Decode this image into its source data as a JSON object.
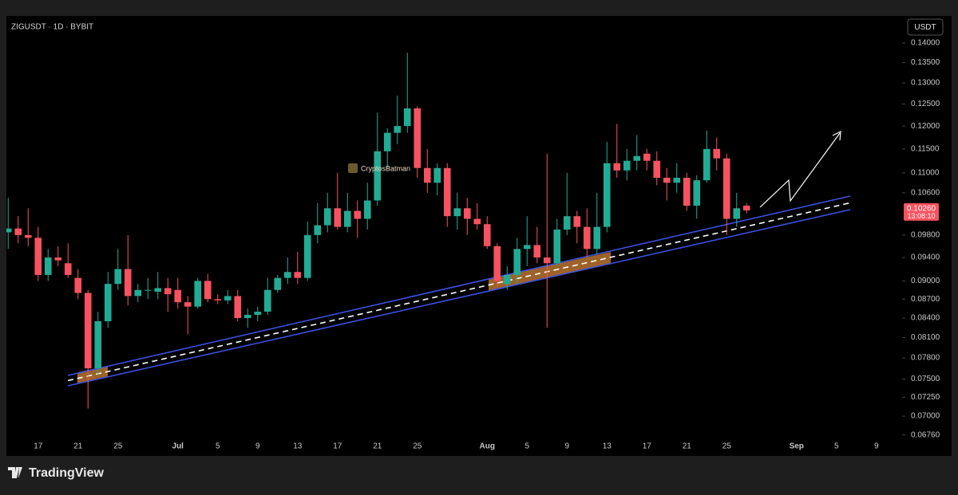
{
  "chart_data": {
    "type": "candlestick",
    "title": "ZIGUSDT · 1D · BYBIT",
    "currency": "USDT",
    "watermark": "CryptosBatman",
    "log_scale": true,
    "grid": false,
    "up_color": "#22ab94",
    "down_color": "#f7525f",
    "categories": [
      null,
      null,
      null,
      "17",
      null,
      null,
      null,
      "21",
      null,
      null,
      null,
      "25",
      null,
      null,
      null,
      null,
      null,
      "Jul",
      null,
      null,
      null,
      "5",
      null,
      null,
      null,
      "9",
      null,
      null,
      null,
      "13",
      null,
      null,
      null,
      "17",
      null,
      null,
      null,
      "21",
      null,
      null,
      null,
      "25",
      null,
      null,
      null,
      null,
      null,
      null,
      "Aug",
      null,
      null,
      null,
      "5",
      null,
      null,
      null,
      "9",
      null,
      null,
      null,
      "13",
      null,
      null,
      null,
      "17",
      null,
      null,
      null,
      "21",
      null,
      null,
      null,
      "25",
      null,
      null,
      null,
      null,
      null,
      null,
      "Sep",
      null,
      null,
      null,
      "5",
      null,
      null,
      null,
      "9",
      null,
      null
    ],
    "ohlc": {
      "open": [
        0.0985,
        0.0992,
        0.098,
        0.0975,
        0.091,
        0.094,
        0.093,
        0.0905,
        0.088,
        0.0765,
        0.0835,
        0.0895,
        0.092,
        0.0875,
        0.0885,
        0.0882,
        0.0888,
        0.0885,
        0.0865,
        0.0858,
        0.09,
        0.087,
        0.0868,
        0.0875,
        0.084,
        0.0845,
        0.085,
        0.0885,
        0.0905,
        0.0915,
        0.0905,
        0.098,
        0.0998,
        0.103,
        0.0995,
        0.1025,
        0.101,
        0.1045,
        0.1145,
        0.1185,
        0.12,
        0.124,
        0.111,
        0.108,
        0.111,
        0.1015,
        0.103,
        0.101,
        0.1,
        0.096,
        0.0895,
        0.091,
        0.0955,
        0.0962,
        0.094,
        0.093,
        0.099,
        0.1015,
        0.0995,
        0.0955,
        0.0995,
        0.112,
        0.1105,
        0.1125,
        0.114,
        0.1125,
        0.109,
        0.108,
        0.109,
        0.1035,
        0.1085,
        0.115,
        0.113,
        0.101,
        0.1035,
        null,
        null,
        null,
        null,
        null,
        null,
        null,
        null,
        null,
        null,
        null,
        null,
        null,
        null,
        null
      ],
      "high": [
        0.105,
        0.1015,
        0.103,
        0.0995,
        0.0955,
        0.096,
        0.0965,
        0.092,
        0.0885,
        0.085,
        0.0915,
        0.0955,
        0.098,
        0.0895,
        0.0905,
        0.0915,
        0.0905,
        0.0905,
        0.0875,
        0.0905,
        0.0912,
        0.0878,
        0.0885,
        0.0885,
        0.0855,
        0.0858,
        0.0905,
        0.091,
        0.094,
        0.095,
        0.1005,
        0.104,
        0.106,
        0.11,
        0.106,
        0.1045,
        0.108,
        0.123,
        0.1195,
        0.127,
        0.1375,
        0.1245,
        0.115,
        0.112,
        0.112,
        0.106,
        0.105,
        0.104,
        0.1015,
        0.0965,
        0.0925,
        0.0975,
        0.1015,
        0.0995,
        0.114,
        0.101,
        0.11,
        0.1025,
        0.103,
        0.106,
        0.1165,
        0.1205,
        0.115,
        0.118,
        0.115,
        0.1145,
        0.111,
        0.112,
        0.11,
        0.1095,
        0.119,
        0.1175,
        0.114,
        0.106,
        0.104,
        null,
        null,
        null,
        null,
        null,
        null,
        null,
        null,
        null,
        null,
        null,
        null,
        null,
        null,
        null
      ],
      "low": [
        0.0955,
        0.0965,
        0.096,
        0.09,
        0.09,
        0.0925,
        0.0905,
        0.087,
        0.071,
        0.0755,
        0.0825,
        0.0885,
        0.086,
        0.0865,
        0.087,
        0.087,
        0.085,
        0.0855,
        0.0815,
        0.0855,
        0.0865,
        0.0862,
        0.0862,
        0.0835,
        0.0825,
        0.0835,
        0.0845,
        0.088,
        0.0895,
        0.0895,
        0.09,
        0.0965,
        0.0985,
        0.099,
        0.0985,
        0.0975,
        0.099,
        0.1035,
        0.111,
        0.116,
        0.1185,
        0.109,
        0.106,
        0.1055,
        0.0995,
        0.099,
        0.098,
        0.099,
        0.0955,
        0.089,
        0.0885,
        0.0895,
        0.0925,
        0.093,
        0.0825,
        0.0925,
        0.098,
        0.0965,
        0.094,
        0.0945,
        0.0985,
        0.109,
        0.1085,
        0.1105,
        0.1105,
        0.1075,
        0.1045,
        0.106,
        0.1025,
        0.101,
        0.108,
        0.1105,
        0.098,
        0.0995,
        0.102,
        null,
        null,
        null,
        null,
        null,
        null,
        null,
        null,
        null,
        null,
        null,
        null,
        null,
        null,
        null
      ],
      "close": [
        0.0992,
        0.098,
        0.0975,
        0.091,
        0.094,
        0.0935,
        0.091,
        0.088,
        0.0765,
        0.0835,
        0.0895,
        0.092,
        0.0875,
        0.0885,
        0.0885,
        0.0888,
        0.0878,
        0.0865,
        0.0858,
        0.09,
        0.087,
        0.0868,
        0.0875,
        0.084,
        0.0845,
        0.085,
        0.0885,
        0.0905,
        0.0915,
        0.0905,
        0.098,
        0.0998,
        0.103,
        0.0995,
        0.1025,
        0.101,
        0.1045,
        0.1145,
        0.1185,
        0.12,
        0.124,
        0.111,
        0.108,
        0.111,
        0.1015,
        0.103,
        0.101,
        0.1,
        0.096,
        0.09,
        0.091,
        0.0955,
        0.0962,
        0.094,
        0.093,
        0.099,
        0.1015,
        0.0995,
        0.0955,
        0.0995,
        0.112,
        0.1105,
        0.1125,
        0.1135,
        0.1125,
        0.109,
        0.108,
        0.109,
        0.1035,
        0.1085,
        0.115,
        0.113,
        0.101,
        0.103,
        0.1026,
        null,
        null,
        null,
        null,
        null,
        null,
        null,
        null,
        null,
        null,
        null,
        null,
        null,
        null,
        null
      ]
    },
    "ylim": [
      0.0654,
      0.1468
    ],
    "yticks": [
      {
        "value": 0.14,
        "label": "0.14000"
      },
      {
        "value": 0.135,
        "label": "0.13500"
      },
      {
        "value": 0.13,
        "label": "0.13000"
      },
      {
        "value": 0.125,
        "label": "0.12500"
      },
      {
        "value": 0.12,
        "label": "0.12000"
      },
      {
        "value": 0.115,
        "label": "0.11500"
      },
      {
        "value": 0.11,
        "label": "0.11000"
      },
      {
        "value": 0.106,
        "label": "0.10600"
      },
      {
        "value": 0.098,
        "label": "0.09800"
      },
      {
        "value": 0.094,
        "label": "0.09400"
      },
      {
        "value": 0.09,
        "label": "0.09000"
      },
      {
        "value": 0.087,
        "label": "0.08700"
      },
      {
        "value": 0.084,
        "label": "0.08400"
      },
      {
        "value": 0.081,
        "label": "0.08100"
      },
      {
        "value": 0.078,
        "label": "0.07800"
      },
      {
        "value": 0.075,
        "label": "0.07500"
      },
      {
        "value": 0.0725,
        "label": "0.07250"
      },
      {
        "value": 0.07,
        "label": "0.07000"
      },
      {
        "value": 0.0676,
        "label": "0.06760"
      }
    ],
    "last_price": {
      "value": 0.1026,
      "label": "0.10260"
    },
    "countdown": "13:08:10"
  },
  "footer": {
    "brand": "TradingView"
  }
}
